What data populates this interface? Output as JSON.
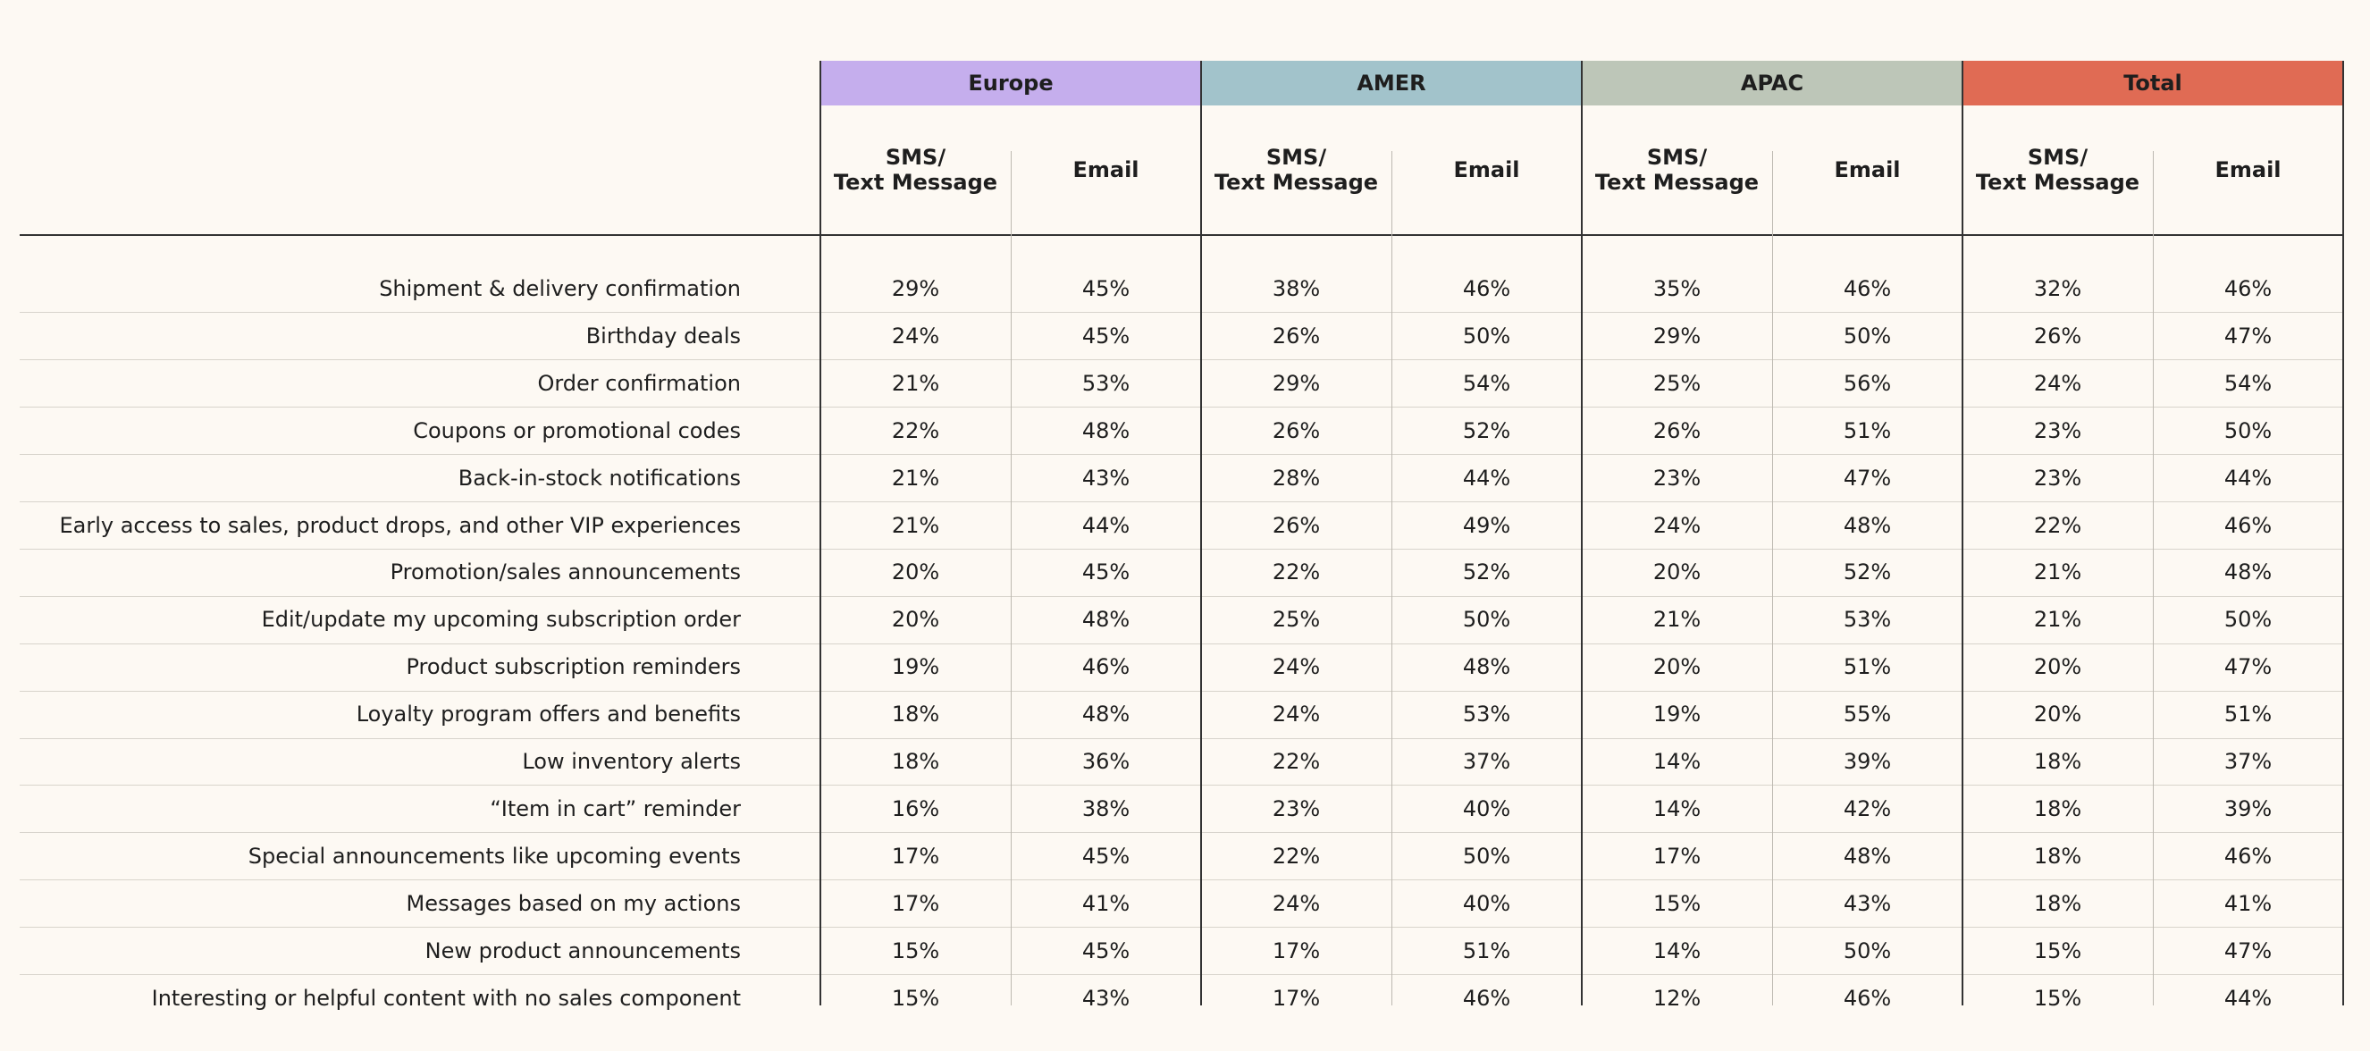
{
  "table": {
    "groups": [
      {
        "name": "Europe",
        "color": "#c5aeed",
        "columns": [
          "SMS/\nText Message",
          "Email"
        ]
      },
      {
        "name": "AMER",
        "color": "#a2c3cb",
        "columns": [
          "SMS/\nText Message",
          "Email"
        ]
      },
      {
        "name": "APAC",
        "color": "#bdc6b8",
        "columns": [
          "SMS/\nText Message",
          "Email"
        ]
      },
      {
        "name": "Total",
        "color": "#e06b54",
        "columns": [
          "SMS/\nText Message",
          "Email"
        ]
      }
    ],
    "rows": [
      {
        "label": "Shipment & delivery confirmation",
        "values": [
          "29%",
          "45%",
          "38%",
          "46%",
          "35%",
          "46%",
          "32%",
          "46%"
        ]
      },
      {
        "label": "Birthday deals",
        "values": [
          "24%",
          "45%",
          "26%",
          "50%",
          "29%",
          "50%",
          "26%",
          "47%"
        ]
      },
      {
        "label": "Order confirmation",
        "values": [
          "21%",
          "53%",
          "29%",
          "54%",
          "25%",
          "56%",
          "24%",
          "54%"
        ]
      },
      {
        "label": "Coupons or promotional codes",
        "values": [
          "22%",
          "48%",
          "26%",
          "52%",
          "26%",
          "51%",
          "23%",
          "50%"
        ]
      },
      {
        "label": "Back-in-stock notifications",
        "values": [
          "21%",
          "43%",
          "28%",
          "44%",
          "23%",
          "47%",
          "23%",
          "44%"
        ]
      },
      {
        "label": "Early access to sales, product drops, and other VIP experiences",
        "values": [
          "21%",
          "44%",
          "26%",
          "49%",
          "24%",
          "48%",
          "22%",
          "46%"
        ]
      },
      {
        "label": "Promotion/sales announcements",
        "values": [
          "20%",
          "45%",
          "22%",
          "52%",
          "20%",
          "52%",
          "21%",
          "48%"
        ]
      },
      {
        "label": "Edit/update my upcoming subscription order",
        "values": [
          "20%",
          "48%",
          "25%",
          "50%",
          "21%",
          "53%",
          "21%",
          "50%"
        ]
      },
      {
        "label": "Product subscription reminders",
        "values": [
          "19%",
          "46%",
          "24%",
          "48%",
          "20%",
          "51%",
          "20%",
          "47%"
        ]
      },
      {
        "label": "Loyalty program offers and benefits",
        "values": [
          "18%",
          "48%",
          "24%",
          "53%",
          "19%",
          "55%",
          "20%",
          "51%"
        ]
      },
      {
        "label": "Low inventory alerts",
        "values": [
          "18%",
          "36%",
          "22%",
          "37%",
          "14%",
          "39%",
          "18%",
          "37%"
        ]
      },
      {
        "label": "“Item in cart” reminder",
        "values": [
          "16%",
          "38%",
          "23%",
          "40%",
          "14%",
          "42%",
          "18%",
          "39%"
        ]
      },
      {
        "label": "Special announcements like upcoming events",
        "values": [
          "17%",
          "45%",
          "22%",
          "50%",
          "17%",
          "48%",
          "18%",
          "46%"
        ]
      },
      {
        "label": "Messages based on my actions",
        "values": [
          "17%",
          "41%",
          "24%",
          "40%",
          "15%",
          "43%",
          "18%",
          "41%"
        ]
      },
      {
        "label": "New product announcements",
        "values": [
          "15%",
          "45%",
          "17%",
          "51%",
          "14%",
          "50%",
          "15%",
          "47%"
        ]
      },
      {
        "label": "Interesting or helpful content with no sales component",
        "values": [
          "15%",
          "43%",
          "17%",
          "46%",
          "12%",
          "46%",
          "15%",
          "44%"
        ]
      }
    ]
  }
}
